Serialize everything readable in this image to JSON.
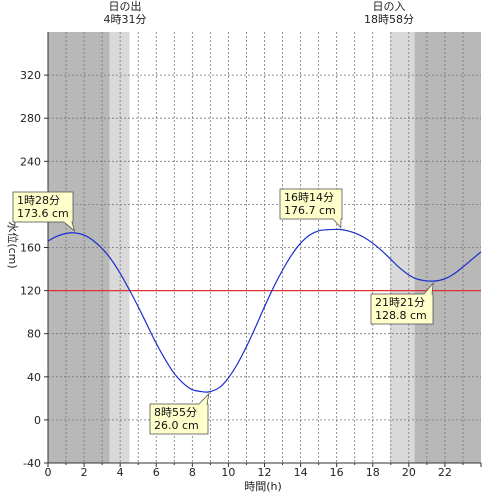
{
  "chart_data": {
    "type": "line",
    "xlabel": "時間(h)",
    "ylabel": "水位(cm)",
    "xlim": [
      0,
      24
    ],
    "ylim": [
      -40,
      360
    ],
    "x_ticks": [
      0,
      2,
      4,
      6,
      8,
      10,
      12,
      14,
      16,
      18,
      20,
      22
    ],
    "y_ticks": [
      -40,
      0,
      40,
      80,
      120,
      160,
      200,
      240,
      280,
      320
    ],
    "reference_line": {
      "value": 120,
      "color": "#e03030"
    },
    "series": [
      {
        "color": "#1a2ecc",
        "x": [
          0,
          0.5,
          1,
          1.47,
          2,
          2.5,
          3,
          3.5,
          4,
          4.5,
          5,
          5.5,
          6,
          6.5,
          7,
          7.5,
          8,
          8.5,
          8.92,
          9.5,
          10,
          10.5,
          11,
          11.5,
          12,
          12.5,
          13,
          13.5,
          14,
          14.5,
          15,
          15.5,
          16.23,
          17,
          17.5,
          18,
          18.5,
          19,
          19.5,
          20,
          20.5,
          21.35,
          22,
          22.5,
          23,
          23.5,
          24
        ],
        "y": [
          166,
          170.5,
          173,
          173.6,
          171.5,
          166.5,
          159,
          149,
          136,
          121,
          105,
          88,
          71,
          56,
          43,
          34,
          28,
          26.3,
          26.0,
          30,
          39,
          52,
          68,
          86,
          105,
          123,
          139,
          153,
          164,
          171.5,
          175.5,
          176.5,
          176.7,
          173.5,
          169.5,
          164,
          157,
          149,
          141,
          134.5,
          130.5,
          128.8,
          131,
          135.5,
          142,
          149,
          156
        ]
      }
    ],
    "sunrise": {
      "label": "日の出",
      "time": "4時31分",
      "hour": 4.517
    },
    "sunset": {
      "label": "日の入",
      "time": "18時58分",
      "hour": 18.967
    },
    "annotations": [
      {
        "time": "1時28分",
        "value": "173.6 cm",
        "x": 1.47,
        "y": 173.6
      },
      {
        "time": "8時55分",
        "value": "26.0 cm",
        "x": 8.92,
        "y": 26.0
      },
      {
        "time": "16時14分",
        "value": "176.7 cm",
        "x": 16.23,
        "y": 176.7
      },
      {
        "time": "21時21分",
        "value": "128.8 cm",
        "x": 21.35,
        "y": 128.8
      }
    ],
    "colors": {
      "night": "#b8b8b8",
      "twilight": "#d9d9d9",
      "label_bg": "#ffffcc"
    }
  }
}
